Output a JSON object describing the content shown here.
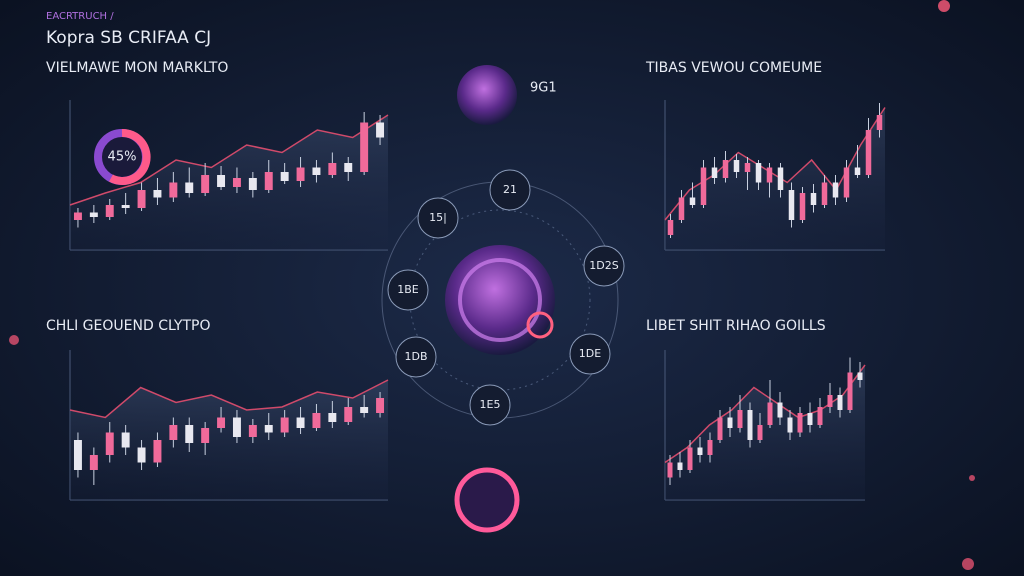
{
  "header": {
    "kicker": "EACRTRUCH /",
    "title": "Kopra SB CRIFAA CJ"
  },
  "center": {
    "title": "9G1",
    "nodes": [
      "21",
      "15|",
      "1D2S",
      "1BE",
      "1DB",
      "1DE",
      "1E5"
    ]
  },
  "panels": [
    {
      "title": "VIELMAWE MON MARKLTO",
      "donut": "45%",
      "candles": [
        [
          20,
          25,
          28,
          15
        ],
        [
          25,
          22,
          30,
          18
        ],
        [
          22,
          30,
          34,
          20
        ],
        [
          30,
          28,
          38,
          24
        ],
        [
          28,
          40,
          45,
          26
        ],
        [
          40,
          35,
          48,
          30
        ],
        [
          35,
          45,
          52,
          32
        ],
        [
          45,
          38,
          55,
          35
        ],
        [
          38,
          50,
          58,
          36
        ],
        [
          50,
          42,
          56,
          40
        ],
        [
          42,
          48,
          55,
          38
        ],
        [
          48,
          40,
          52,
          35
        ],
        [
          40,
          52,
          60,
          38
        ],
        [
          52,
          46,
          58,
          44
        ],
        [
          46,
          55,
          62,
          42
        ],
        [
          55,
          50,
          60,
          45
        ],
        [
          50,
          58,
          65,
          48
        ],
        [
          58,
          52,
          62,
          46
        ],
        [
          52,
          85,
          92,
          50
        ],
        [
          85,
          75,
          90,
          70
        ]
      ],
      "line": [
        30,
        38,
        45,
        60,
        55,
        70,
        65,
        80,
        75,
        90
      ]
    },
    {
      "title": "TIBAS VEWOU COMEUME",
      "candles": [
        [
          10,
          20,
          24,
          8
        ],
        [
          20,
          35,
          40,
          18
        ],
        [
          35,
          30,
          45,
          28
        ],
        [
          30,
          55,
          60,
          28
        ],
        [
          55,
          48,
          62,
          44
        ],
        [
          48,
          60,
          66,
          45
        ],
        [
          60,
          52,
          64,
          48
        ],
        [
          52,
          58,
          62,
          40
        ],
        [
          58,
          45,
          60,
          40
        ],
        [
          45,
          55,
          58,
          35
        ],
        [
          55,
          40,
          58,
          35
        ],
        [
          40,
          20,
          45,
          15
        ],
        [
          20,
          38,
          42,
          18
        ],
        [
          38,
          30,
          44,
          25
        ],
        [
          30,
          45,
          50,
          28
        ],
        [
          45,
          35,
          50,
          30
        ],
        [
          35,
          55,
          60,
          32
        ],
        [
          55,
          50,
          70,
          48
        ],
        [
          50,
          80,
          88,
          48
        ],
        [
          80,
          90,
          98,
          75
        ]
      ],
      "line": [
        20,
        40,
        50,
        65,
        55,
        45,
        60,
        40,
        70,
        95
      ]
    },
    {
      "title": "CHLI GEOUEND CLYTPO",
      "candles": [
        [
          40,
          20,
          45,
          15
        ],
        [
          20,
          30,
          35,
          10
        ],
        [
          30,
          45,
          52,
          25
        ],
        [
          45,
          35,
          50,
          30
        ],
        [
          35,
          25,
          40,
          20
        ],
        [
          25,
          40,
          45,
          22
        ],
        [
          40,
          50,
          55,
          35
        ],
        [
          50,
          38,
          55,
          32
        ],
        [
          38,
          48,
          52,
          30
        ],
        [
          48,
          55,
          62,
          45
        ],
        [
          55,
          42,
          60,
          38
        ],
        [
          42,
          50,
          54,
          38
        ],
        [
          50,
          45,
          58,
          40
        ],
        [
          45,
          55,
          60,
          42
        ],
        [
          55,
          48,
          62,
          44
        ],
        [
          48,
          58,
          64,
          46
        ],
        [
          58,
          52,
          66,
          48
        ],
        [
          52,
          62,
          68,
          50
        ],
        [
          62,
          58,
          70,
          55
        ],
        [
          58,
          68,
          72,
          55
        ]
      ],
      "line": [
        60,
        55,
        75,
        65,
        70,
        60,
        62,
        72,
        68,
        80
      ]
    },
    {
      "title": "LIBET SHIT RIHAO GOILLS",
      "candles": [
        [
          15,
          25,
          30,
          10
        ],
        [
          25,
          20,
          32,
          15
        ],
        [
          20,
          35,
          40,
          18
        ],
        [
          35,
          30,
          42,
          25
        ],
        [
          30,
          40,
          45,
          25
        ],
        [
          40,
          55,
          60,
          38
        ],
        [
          55,
          48,
          62,
          42
        ],
        [
          48,
          60,
          70,
          45
        ],
        [
          60,
          40,
          65,
          35
        ],
        [
          40,
          50,
          58,
          38
        ],
        [
          50,
          65,
          80,
          48
        ],
        [
          65,
          55,
          72,
          50
        ],
        [
          55,
          45,
          60,
          40
        ],
        [
          45,
          58,
          62,
          42
        ],
        [
          58,
          50,
          65,
          45
        ],
        [
          50,
          62,
          68,
          48
        ],
        [
          62,
          70,
          78,
          58
        ],
        [
          70,
          60,
          75,
          55
        ],
        [
          60,
          85,
          95,
          58
        ],
        [
          85,
          80,
          92,
          75
        ]
      ],
      "line": [
        25,
        35,
        50,
        60,
        75,
        65,
        55,
        60,
        70,
        90
      ]
    }
  ]
}
